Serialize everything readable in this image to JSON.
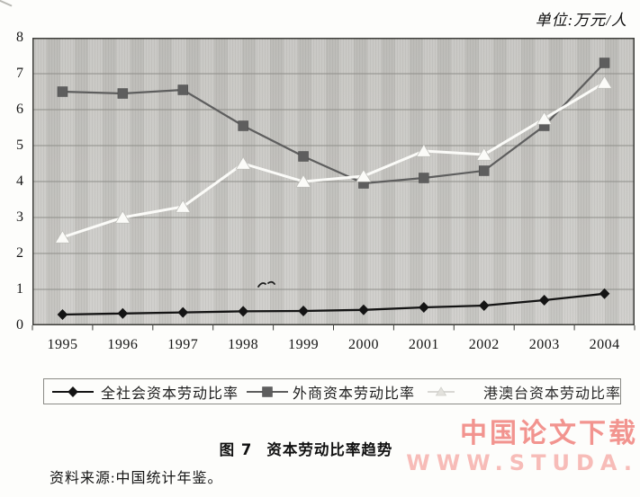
{
  "page": {
    "unit_label": "单位:万元/人",
    "figure_label": "图 7",
    "figure_title": "资本劳动比率趋势",
    "source_note": "资料来源:中国统计年鉴。"
  },
  "watermark": {
    "line1": "中国论文下载",
    "line2": "WWW.STUDA.",
    "color1": "#f2948f",
    "color2": "#f7bcb8"
  },
  "chart_data": {
    "type": "line",
    "title": "资本劳动比率趋势",
    "unit": "万元/人",
    "categories": [
      "1995",
      "1996",
      "1997",
      "1998",
      "1999",
      "2000",
      "2001",
      "2002",
      "2003",
      "2004"
    ],
    "series": [
      {
        "name": "全社会资本劳动比率",
        "marker": "diamond",
        "color": "#141414",
        "values": [
          0.3,
          0.33,
          0.36,
          0.39,
          0.4,
          0.43,
          0.5,
          0.55,
          0.7,
          0.88
        ]
      },
      {
        "name": "外商资本劳动比率",
        "marker": "square",
        "color": "#5e5e5e",
        "values": [
          6.5,
          6.45,
          6.55,
          5.55,
          4.7,
          3.95,
          4.1,
          4.3,
          5.55,
          7.3
        ]
      },
      {
        "name": "港澳台资本劳动比率",
        "marker": "triangle",
        "color": "#fbfbf8",
        "values": [
          2.45,
          3.0,
          3.3,
          4.5,
          4.0,
          4.15,
          4.85,
          4.75,
          5.75,
          6.75
        ]
      }
    ],
    "ylim": [
      0,
      8
    ],
    "yticks": [
      0,
      1,
      2,
      3,
      4,
      5,
      6,
      7,
      8
    ],
    "grid": true,
    "legend_position": "bottom",
    "plot_background": "#cac9c5",
    "gridline_color": "#8f8f8a"
  }
}
